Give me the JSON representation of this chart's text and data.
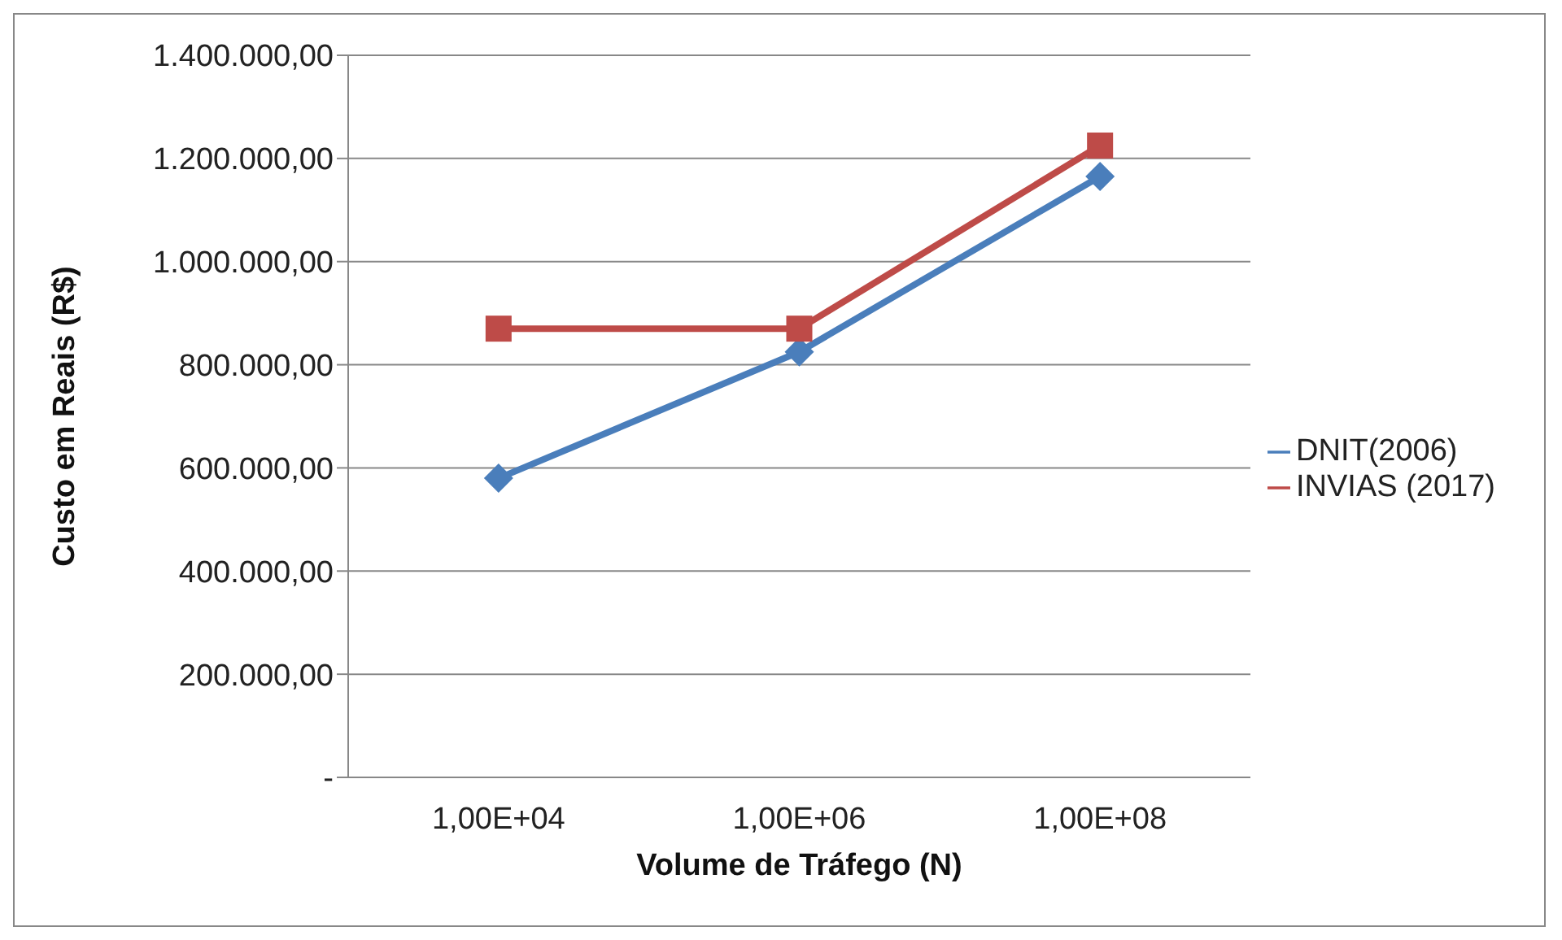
{
  "chart_data": {
    "type": "line",
    "xlabel": "Volume de Tráfego (N)",
    "ylabel": "Custo em Reais (R$)",
    "categories": [
      "1,00E+04",
      "1,00E+06",
      "1,00E+08"
    ],
    "series": [
      {
        "name": "DNIT(2006)",
        "color": "#4a7ebb",
        "values": [
          580000,
          825000,
          1165000
        ],
        "marker": "diamond"
      },
      {
        "name": "INVIAS (2017)",
        "color": "#be4b48",
        "values": [
          870000,
          870000,
          1225000
        ],
        "marker": "square"
      }
    ],
    "ylim": [
      0,
      1400000
    ],
    "yticks": [
      {
        "value": 0,
        "label": "-"
      },
      {
        "value": 200000,
        "label": "200.000,00"
      },
      {
        "value": 400000,
        "label": "400.000,00"
      },
      {
        "value": 600000,
        "label": "600.000,00"
      },
      {
        "value": 800000,
        "label": "800.000,00"
      },
      {
        "value": 1000000,
        "label": "1.000.000,00"
      },
      {
        "value": 1200000,
        "label": "1.200.000,00"
      },
      {
        "value": 1400000,
        "label": "1.400.000,00"
      }
    ],
    "grid": "y",
    "legend": "right",
    "line_style": "solid"
  }
}
